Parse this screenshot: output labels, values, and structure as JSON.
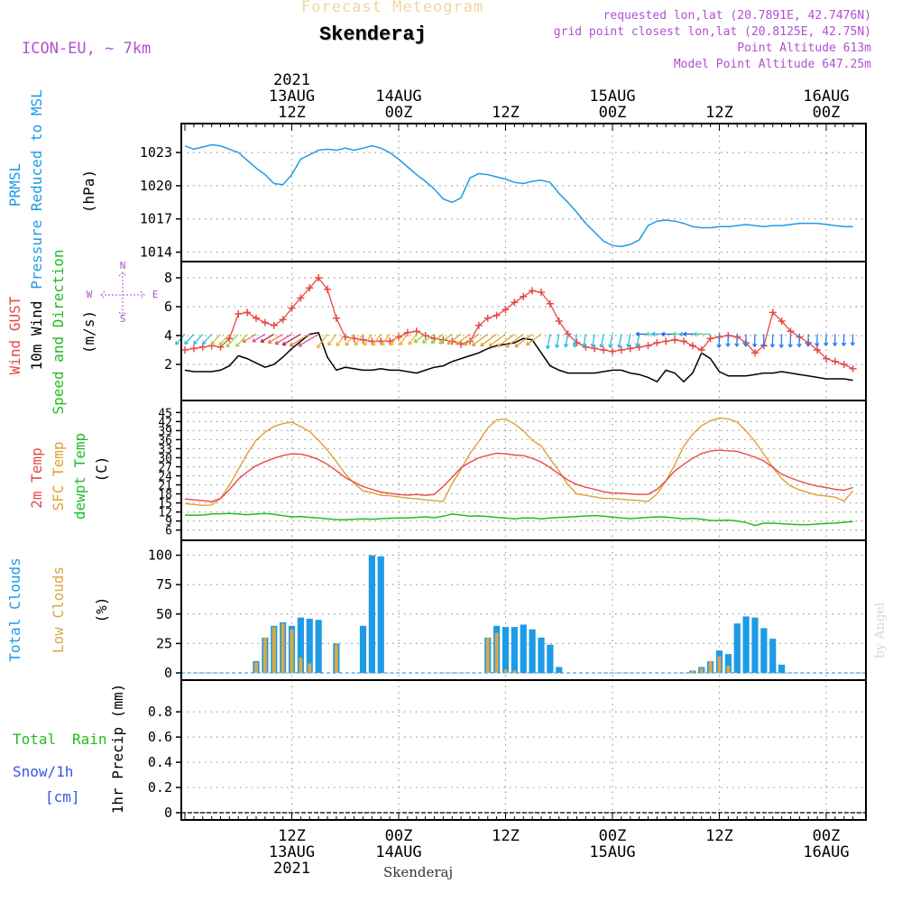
{
  "header": {
    "app_title": "Forecast Meteogram",
    "location": "Skenderaj",
    "model": "ICON-EU, ~ 7km",
    "requested": "requested lon,lat (20.7891E, 42.7476N)",
    "grid_point": "grid point closest lon,lat (20.8125E, 42.75N)",
    "point_altitude": "Point Altitude 613m",
    "model_altitude": "Model Point Altitude 647.25m",
    "footer_location": "Skenderaj",
    "watermark": "by Angel"
  },
  "colors": {
    "pressure": "#1e9be6",
    "gust": "#e84848",
    "wind": "#000000",
    "temp2m": "#e84848",
    "sfc": "#e0a030",
    "dewpt": "#22bb22",
    "total_cloud": "#1e9be6",
    "low_cloud": "#d8a848",
    "rain": "#22bb22",
    "snow": "#3355ee",
    "header_purple": "#b050d0"
  },
  "time_axis": {
    "top_labels": [
      {
        "h": 12,
        "lines": [
          "2021",
          "13AUG",
          "12Z"
        ]
      },
      {
        "h": 24,
        "lines": [
          "14AUG",
          "00Z"
        ]
      },
      {
        "h": 36,
        "lines": [
          "12Z"
        ]
      },
      {
        "h": 48,
        "lines": [
          "15AUG",
          "00Z"
        ]
      },
      {
        "h": 60,
        "lines": [
          "12Z"
        ]
      },
      {
        "h": 72,
        "lines": [
          "16AUG",
          "00Z"
        ]
      }
    ],
    "bottom_labels": [
      {
        "h": 12,
        "lines": [
          "12Z",
          "13AUG",
          "2021"
        ]
      },
      {
        "h": 24,
        "lines": [
          "00Z",
          "14AUG"
        ]
      },
      {
        "h": 36,
        "lines": [
          "12Z"
        ]
      },
      {
        "h": 48,
        "lines": [
          "00Z",
          "15AUG"
        ]
      },
      {
        "h": 60,
        "lines": [
          "12Z"
        ]
      },
      {
        "h": 72,
        "lines": [
          "00Z",
          "16AUG"
        ]
      }
    ]
  },
  "panels": {
    "pressure": {
      "label1": "PRMSL",
      "label2": "Pressure Reduced to MSL",
      "unit": "(hPa)"
    },
    "wind": {
      "label1": "Wind GUST",
      "label2": "10m Wind",
      "label3": "Speed and Direction",
      "unit": "(m/s)",
      "compass_n": "N",
      "compass_s": "S",
      "compass_w": "W",
      "compass_e": "E"
    },
    "temp": {
      "label1": "2m Temp",
      "label2": "SFC Temp",
      "label3": "dewpt Temp",
      "unit": "(C)"
    },
    "cloud": {
      "label1": "Total Clouds",
      "label2": "Low Clouds",
      "unit": "(%)"
    },
    "precip": {
      "label1": "Total",
      "label1b": "Rain",
      "label2": "Snow/1h",
      "label3": "[cm]",
      "unit": "1hr Precip (mm)"
    }
  },
  "chart_data": [
    {
      "type": "line",
      "name": "pressure",
      "ylabel": "(hPa)",
      "yticks": [
        1014,
        1017,
        1020,
        1023
      ],
      "ylim": [
        1013.8,
        1024.8
      ],
      "xlim": [
        0,
        76
      ],
      "x": [
        0,
        1,
        2,
        3,
        4,
        5,
        6,
        7,
        8,
        9,
        10,
        11,
        12,
        13,
        14,
        15,
        16,
        17,
        18,
        19,
        20,
        21,
        22,
        23,
        24,
        25,
        26,
        27,
        28,
        29,
        30,
        31,
        32,
        33,
        34,
        35,
        36,
        37,
        38,
        39,
        40,
        41,
        42,
        43,
        44,
        45,
        46,
        47,
        48,
        49,
        50,
        51,
        52,
        53,
        54,
        55,
        56,
        57,
        58,
        59,
        60,
        61,
        62,
        63,
        64,
        65,
        66,
        67,
        68,
        69,
        70,
        71,
        72,
        73,
        74,
        75
      ],
      "series": [
        {
          "name": "PRMSL",
          "values": [
            1023.6,
            1023.3,
            1023.5,
            1023.7,
            1023.6,
            1023.3,
            1023.0,
            1022.3,
            1021.6,
            1021.0,
            1020.2,
            1020.1,
            1021.0,
            1022.4,
            1022.8,
            1023.2,
            1023.3,
            1023.2,
            1023.4,
            1023.2,
            1023.4,
            1023.6,
            1023.4,
            1023.0,
            1022.4,
            1021.7,
            1021.0,
            1020.4,
            1019.7,
            1018.8,
            1018.5,
            1018.9,
            1020.7,
            1021.1,
            1021.0,
            1020.8,
            1020.6,
            1020.3,
            1020.2,
            1020.4,
            1020.5,
            1020.3,
            1019.3,
            1018.5,
            1017.6,
            1016.6,
            1015.8,
            1015.0,
            1014.6,
            1014.5,
            1014.7,
            1015.1,
            1016.4,
            1016.8,
            1016.9,
            1016.8,
            1016.6,
            1016.3,
            1016.2,
            1016.2,
            1016.3,
            1016.3,
            1016.4,
            1016.5,
            1016.4,
            1016.3,
            1016.4,
            1016.4,
            1016.5,
            1016.6,
            1016.6,
            1016.6,
            1016.5,
            1016.4,
            1016.3,
            1016.3
          ]
        }
      ]
    },
    {
      "type": "line",
      "name": "wind",
      "ylabel": "(m/s)",
      "yticks": [
        2,
        4,
        6,
        8
      ],
      "ylim": [
        0,
        8.5
      ],
      "x": [
        0,
        1,
        2,
        3,
        4,
        5,
        6,
        7,
        8,
        9,
        10,
        11,
        12,
        13,
        14,
        15,
        16,
        17,
        18,
        19,
        20,
        21,
        22,
        23,
        24,
        25,
        26,
        27,
        28,
        29,
        30,
        31,
        32,
        33,
        34,
        35,
        36,
        37,
        38,
        39,
        40,
        41,
        42,
        43,
        44,
        45,
        46,
        47,
        48,
        49,
        50,
        51,
        52,
        53,
        54,
        55,
        56,
        57,
        58,
        59,
        60,
        61,
        62,
        63,
        64,
        65,
        66,
        67,
        68,
        69,
        70,
        71,
        72,
        73,
        74,
        75
      ],
      "series": [
        {
          "name": "Wind GUST",
          "values": [
            3.0,
            3.1,
            3.2,
            3.3,
            3.2,
            3.8,
            5.5,
            5.6,
            5.2,
            4.9,
            4.7,
            5.1,
            5.9,
            6.6,
            7.3,
            8.0,
            7.2,
            5.2,
            3.9,
            3.8,
            3.7,
            3.6,
            3.6,
            3.6,
            3.9,
            4.2,
            4.3,
            4.0,
            3.8,
            3.7,
            3.6,
            3.4,
            3.6,
            4.7,
            5.2,
            5.4,
            5.8,
            6.3,
            6.7,
            7.1,
            7.0,
            6.2,
            5.0,
            4.1,
            3.5,
            3.2,
            3.1,
            3.0,
            2.9,
            3.0,
            3.1,
            3.2,
            3.3,
            3.5,
            3.6,
            3.7,
            3.6,
            3.3,
            3.0,
            3.8,
            3.9,
            4.0,
            3.9,
            3.5,
            2.8,
            3.3,
            5.6,
            5.0,
            4.3,
            3.9,
            3.5,
            3.0,
            2.4,
            2.2,
            2.0,
            1.7
          ]
        },
        {
          "name": "10m Wind",
          "values": [
            1.6,
            1.5,
            1.5,
            1.5,
            1.6,
            1.9,
            2.6,
            2.4,
            2.1,
            1.8,
            2.0,
            2.5,
            3.1,
            3.6,
            4.1,
            4.2,
            2.5,
            1.6,
            1.8,
            1.7,
            1.6,
            1.6,
            1.7,
            1.6,
            1.6,
            1.5,
            1.4,
            1.6,
            1.8,
            1.9,
            2.2,
            2.4,
            2.6,
            2.8,
            3.1,
            3.3,
            3.4,
            3.5,
            3.8,
            3.7,
            2.8,
            1.9,
            1.6,
            1.4,
            1.4,
            1.4,
            1.4,
            1.5,
            1.6,
            1.6,
            1.4,
            1.3,
            1.1,
            0.8,
            1.6,
            1.4,
            0.8,
            1.4,
            2.8,
            2.4,
            1.5,
            1.2,
            1.2,
            1.2,
            1.3,
            1.4,
            1.4,
            1.5,
            1.4,
            1.3,
            1.2,
            1.1,
            1.0,
            1.0,
            1.0,
            0.9
          ]
        }
      ]
    },
    {
      "type": "line",
      "name": "temperature",
      "ylabel": "(C)",
      "yticks": [
        6,
        9,
        12,
        15,
        18,
        21,
        24,
        27,
        30,
        33,
        36,
        39,
        42,
        45
      ],
      "ylim": [
        5,
        46
      ],
      "x": [
        0,
        1,
        2,
        3,
        4,
        5,
        6,
        7,
        8,
        9,
        10,
        11,
        12,
        13,
        14,
        15,
        16,
        17,
        18,
        19,
        20,
        21,
        22,
        23,
        24,
        25,
        26,
        27,
        28,
        29,
        30,
        31,
        32,
        33,
        34,
        35,
        36,
        37,
        38,
        39,
        40,
        41,
        42,
        43,
        44,
        45,
        46,
        47,
        48,
        49,
        50,
        51,
        52,
        53,
        54,
        55,
        56,
        57,
        58,
        59,
        60,
        61,
        62,
        63,
        64,
        65,
        66,
        67,
        68,
        69,
        70,
        71,
        72,
        73,
        74,
        75
      ],
      "series": [
        {
          "name": "2m Temp",
          "values": [
            16.3,
            16.0,
            15.8,
            15.4,
            16.5,
            19.4,
            22.9,
            25.3,
            27.4,
            28.7,
            29.8,
            30.7,
            31.3,
            31.2,
            30.5,
            29.4,
            27.8,
            25.7,
            23.4,
            21.9,
            20.4,
            19.5,
            18.6,
            18.2,
            17.8,
            17.6,
            17.8,
            17.5,
            17.8,
            20.5,
            23.5,
            26.7,
            28.5,
            30.0,
            30.8,
            31.5,
            31.3,
            30.9,
            30.7,
            29.8,
            28.6,
            26.7,
            24.6,
            22.6,
            21.1,
            20.2,
            19.5,
            18.7,
            18.3,
            18.2,
            18.0,
            17.8,
            17.9,
            19.5,
            22.4,
            25.6,
            27.8,
            29.8,
            31.4,
            32.2,
            32.5,
            32.3,
            32.1,
            31.2,
            30.2,
            28.9,
            26.8,
            24.5,
            23.3,
            22.2,
            21.3,
            20.6,
            20.1,
            19.5,
            19.2,
            20.1
          ]
        },
        {
          "name": "SFC Temp",
          "values": [
            14.8,
            14.5,
            14.2,
            14.3,
            16.5,
            20.9,
            26.2,
            31.3,
            35.8,
            38.5,
            40.4,
            41.3,
            41.8,
            40.3,
            38.7,
            35.8,
            32.5,
            28.7,
            24.7,
            21.5,
            19.0,
            18.4,
            17.5,
            17.4,
            17.0,
            16.6,
            16.4,
            16.0,
            15.8,
            15.5,
            21.5,
            26.2,
            31.4,
            35.5,
            39.9,
            42.6,
            42.8,
            41.2,
            38.9,
            35.8,
            33.9,
            29.6,
            25.6,
            21.0,
            18.0,
            17.5,
            17.0,
            16.5,
            16.5,
            16.2,
            16.0,
            15.8,
            15.5,
            18.0,
            22.3,
            27.7,
            33.8,
            37.8,
            40.6,
            42.3,
            43.2,
            42.9,
            41.8,
            38.9,
            35.4,
            31.2,
            26.8,
            23.1,
            20.6,
            19.3,
            18.4,
            17.6,
            17.3,
            16.9,
            15.6,
            19.1
          ]
        },
        {
          "name": "dewpt Temp",
          "values": [
            11.0,
            10.9,
            11.0,
            11.3,
            11.4,
            11.5,
            11.3,
            11.1,
            11.3,
            11.5,
            11.2,
            10.8,
            10.4,
            10.5,
            10.2,
            10.0,
            9.7,
            9.5,
            9.4,
            9.6,
            9.7,
            9.6,
            9.8,
            9.9,
            10.0,
            10.0,
            10.2,
            10.4,
            10.1,
            10.6,
            11.3,
            11.0,
            10.6,
            10.7,
            10.5,
            10.2,
            10.0,
            9.7,
            10.0,
            10.0,
            9.7,
            10.0,
            10.2,
            10.3,
            10.5,
            10.7,
            10.8,
            10.6,
            10.3,
            10.0,
            9.8,
            10.0,
            10.2,
            10.4,
            10.3,
            10.0,
            9.7,
            9.9,
            9.6,
            9.2,
            9.2,
            9.3,
            9.0,
            8.5,
            7.5,
            8.3,
            8.3,
            8.1,
            7.9,
            7.8,
            7.8,
            8.0,
            8.2,
            8.3,
            8.6,
            8.8
          ]
        }
      ]
    },
    {
      "type": "bar",
      "name": "clouds",
      "ylabel": "(%)",
      "yticks": [
        0,
        25,
        50,
        75,
        100
      ],
      "ylim": [
        0,
        105
      ],
      "x": [
        0,
        1,
        2,
        3,
        4,
        5,
        6,
        7,
        8,
        9,
        10,
        11,
        12,
        13,
        14,
        15,
        16,
        17,
        18,
        19,
        20,
        21,
        22,
        23,
        24,
        25,
        26,
        27,
        28,
        29,
        30,
        31,
        32,
        33,
        34,
        35,
        36,
        37,
        38,
        39,
        40,
        41,
        42,
        43,
        44,
        45,
        46,
        47,
        48,
        49,
        50,
        51,
        52,
        53,
        54,
        55,
        56,
        57,
        58,
        59,
        60,
        61,
        62,
        63,
        64,
        65,
        66,
        67,
        68,
        69,
        70,
        71,
        72,
        73,
        74,
        75
      ],
      "series": [
        {
          "name": "Total Clouds",
          "values": [
            0,
            0,
            0,
            0,
            0,
            0,
            0,
            0,
            10,
            30,
            40,
            43,
            40,
            47,
            46,
            45,
            0,
            25,
            0,
            0,
            40,
            100,
            99,
            0,
            0,
            0,
            0,
            0,
            0,
            0,
            0,
            0,
            0,
            0,
            30,
            40,
            39,
            39,
            41,
            37,
            30,
            24,
            5,
            0,
            0,
            0,
            0,
            0,
            0,
            0,
            0,
            0,
            0,
            0,
            0,
            0,
            0,
            2,
            5,
            10,
            19,
            16,
            42,
            48,
            47,
            38,
            29,
            7,
            0,
            0,
            0,
            0,
            0,
            0,
            0,
            0
          ]
        },
        {
          "name": "Low Clouds",
          "values": [
            0,
            0,
            0,
            0,
            0,
            0,
            0,
            0,
            9,
            30,
            39,
            42,
            37,
            13,
            8,
            0,
            0,
            24,
            0,
            0,
            0,
            0,
            0,
            0,
            0,
            0,
            0,
            0,
            0,
            0,
            0,
            0,
            0,
            0,
            30,
            34,
            3,
            2,
            0,
            0,
            0,
            0,
            0,
            0,
            0,
            0,
            0,
            0,
            0,
            0,
            0,
            0,
            0,
            0,
            0,
            0,
            0,
            2,
            4,
            10,
            14,
            6,
            0,
            0,
            0,
            0,
            0,
            0,
            0,
            0,
            0,
            0,
            0,
            0,
            0,
            0
          ]
        }
      ]
    },
    {
      "type": "bar",
      "name": "precipitation",
      "ylabel": "1hr Precip (mm)",
      "yticks": [
        0,
        0.2,
        0.4,
        0.6,
        0.8
      ],
      "ylim": [
        0,
        0.98
      ],
      "series": [
        {
          "name": "Total Rain",
          "values": [
            0
          ]
        },
        {
          "name": "Snow/1h",
          "values": [
            0
          ]
        }
      ]
    }
  ]
}
